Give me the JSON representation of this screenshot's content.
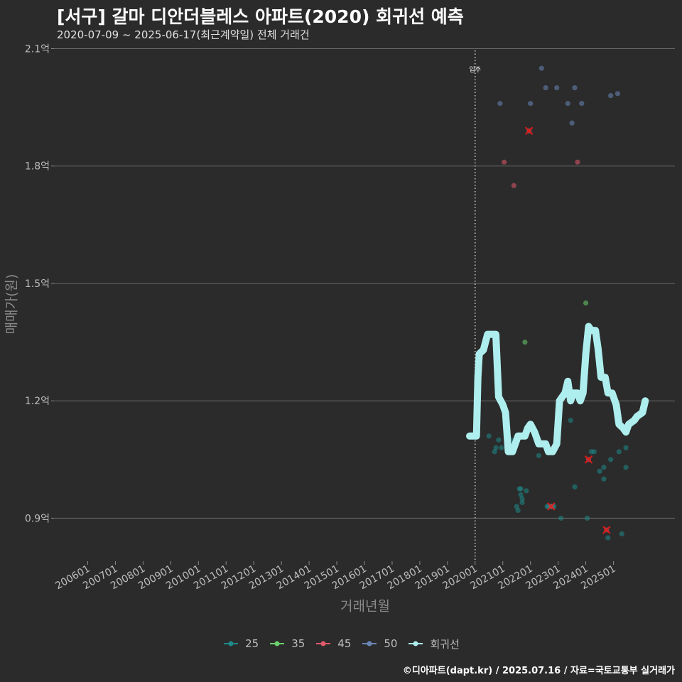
{
  "header": {
    "title": "[서구] 갈마 디안더블레스 아파트(2020) 회귀선 예측",
    "subtitle": "2020-07-09 ~ 2025-06-17(최근계약일) 전체 거래건"
  },
  "caption": "©디아파트(dapt.kr) / 2025.07.16 / 자료=국토교통부 실거래가",
  "chart_data": {
    "type": "scatter",
    "xlabel": "거래년월",
    "ylabel": "매매가(원)",
    "xlim": [
      2005.5,
      2026.3
    ],
    "ylim": [
      0.79,
      2.11
    ],
    "y_ticks": [
      0.9,
      1.2,
      1.5,
      1.8,
      2.1
    ],
    "y_tick_labels": [
      "0.9억",
      "1.2억",
      "1.5억",
      "1.8억",
      "2.1억"
    ],
    "x_ticks": [
      2006,
      2007,
      2008,
      2009,
      2010,
      2011,
      2012,
      2013,
      2014,
      2015,
      2016,
      2017,
      2018,
      2019,
      2020,
      2021,
      2022,
      2023,
      2024,
      2025
    ],
    "x_tick_labels": [
      "200601",
      "200701",
      "200801",
      "200901",
      "201001",
      "201101",
      "201201",
      "201301",
      "201401",
      "201501",
      "201601",
      "201701",
      "201801",
      "201901",
      "202001",
      "202101",
      "202201",
      "202301",
      "202401",
      "202501"
    ],
    "grid": true,
    "legend_position": "bottom",
    "annotation": {
      "x": 2020.0,
      "label": "입주"
    },
    "series": [
      {
        "name": "25",
        "color": "#1f8a8a",
        "points": [
          [
            2020.5,
            1.11
          ],
          [
            2020.7,
            1.07
          ],
          [
            2020.75,
            1.08
          ],
          [
            2020.85,
            1.1
          ],
          [
            2020.95,
            1.08
          ],
          [
            2021.3,
            1.1
          ],
          [
            2021.4,
            1.075
          ],
          [
            2021.45,
            1.09
          ],
          [
            2021.5,
            0.93
          ],
          [
            2021.55,
            0.92
          ],
          [
            2021.6,
            0.975
          ],
          [
            2021.65,
            0.975
          ],
          [
            2021.65,
            0.96
          ],
          [
            2021.7,
            0.95
          ],
          [
            2021.7,
            0.94
          ],
          [
            2021.85,
            0.97
          ],
          [
            2022.3,
            1.06
          ],
          [
            2022.6,
            0.93
          ],
          [
            2022.65,
            0.93
          ],
          [
            2022.75,
            0.93
          ],
          [
            2022.8,
            0.93
          ],
          [
            2022.85,
            0.93
          ],
          [
            2023.1,
            0.9
          ],
          [
            2023.45,
            1.15
          ],
          [
            2023.6,
            0.98
          ],
          [
            2024.05,
            0.9
          ],
          [
            2024.2,
            1.07
          ],
          [
            2024.3,
            1.07
          ],
          [
            2024.5,
            1.02
          ],
          [
            2024.65,
            1.03
          ],
          [
            2024.65,
            1.0
          ],
          [
            2024.8,
            0.85
          ],
          [
            2024.9,
            1.05
          ],
          [
            2025.2,
            1.07
          ],
          [
            2025.3,
            0.86
          ],
          [
            2025.45,
            1.08
          ],
          [
            2025.45,
            1.03
          ]
        ]
      },
      {
        "name": "35",
        "color": "#6ccf6c",
        "points": [
          [
            2021.8,
            1.35
          ],
          [
            2024.0,
            1.45
          ]
        ]
      },
      {
        "name": "45",
        "color": "#e05a6a",
        "points": [
          [
            2021.05,
            1.81
          ],
          [
            2021.4,
            1.75
          ],
          [
            2021.95,
            1.89
          ],
          [
            2022.75,
            0.93
          ],
          [
            2023.7,
            1.81
          ],
          [
            2024.1,
            1.05
          ],
          [
            2024.75,
            0.87
          ]
        ]
      },
      {
        "name": "50",
        "color": "#6a87b8",
        "points": [
          [
            2020.9,
            1.96
          ],
          [
            2022.0,
            1.96
          ],
          [
            2022.4,
            2.05
          ],
          [
            2022.55,
            2.0
          ],
          [
            2022.95,
            2.0
          ],
          [
            2023.35,
            1.96
          ],
          [
            2023.5,
            1.91
          ],
          [
            2023.6,
            2.0
          ],
          [
            2023.85,
            1.96
          ],
          [
            2024.9,
            1.98
          ],
          [
            2025.15,
            1.985
          ]
        ]
      },
      {
        "name": "회귀선",
        "color": "#aeeeee",
        "line": [
          [
            2019.8,
            1.11
          ],
          [
            2020.05,
            1.11
          ],
          [
            2020.1,
            1.26
          ],
          [
            2020.15,
            1.32
          ],
          [
            2020.3,
            1.33
          ],
          [
            2020.45,
            1.37
          ],
          [
            2020.75,
            1.37
          ],
          [
            2020.85,
            1.21
          ],
          [
            2021.0,
            1.19
          ],
          [
            2021.1,
            1.17
          ],
          [
            2021.2,
            1.07
          ],
          [
            2021.35,
            1.07
          ],
          [
            2021.55,
            1.11
          ],
          [
            2021.8,
            1.11
          ],
          [
            2021.9,
            1.13
          ],
          [
            2022.0,
            1.14
          ],
          [
            2022.15,
            1.12
          ],
          [
            2022.3,
            1.09
          ],
          [
            2022.55,
            1.09
          ],
          [
            2022.65,
            1.07
          ],
          [
            2022.8,
            1.07
          ],
          [
            2022.95,
            1.09
          ],
          [
            2023.05,
            1.2
          ],
          [
            2023.25,
            1.22
          ],
          [
            2023.35,
            1.25
          ],
          [
            2023.45,
            1.2
          ],
          [
            2023.55,
            1.22
          ],
          [
            2023.7,
            1.22
          ],
          [
            2023.8,
            1.2
          ],
          [
            2023.9,
            1.22
          ],
          [
            2024.0,
            1.32
          ],
          [
            2024.1,
            1.39
          ],
          [
            2024.2,
            1.38
          ],
          [
            2024.35,
            1.38
          ],
          [
            2024.45,
            1.33
          ],
          [
            2024.55,
            1.26
          ],
          [
            2024.7,
            1.26
          ],
          [
            2024.8,
            1.22
          ],
          [
            2024.95,
            1.22
          ],
          [
            2025.1,
            1.19
          ],
          [
            2025.2,
            1.14
          ],
          [
            2025.35,
            1.13
          ],
          [
            2025.45,
            1.12
          ],
          [
            2025.55,
            1.14
          ],
          [
            2025.75,
            1.15
          ],
          [
            2025.85,
            1.16
          ],
          [
            2026.05,
            1.17
          ],
          [
            2026.15,
            1.2
          ]
        ]
      }
    ],
    "highlighted_points": [
      [
        2021.95,
        1.89
      ],
      [
        2022.75,
        0.93
      ],
      [
        2024.1,
        1.05
      ],
      [
        2024.75,
        0.87
      ]
    ]
  }
}
